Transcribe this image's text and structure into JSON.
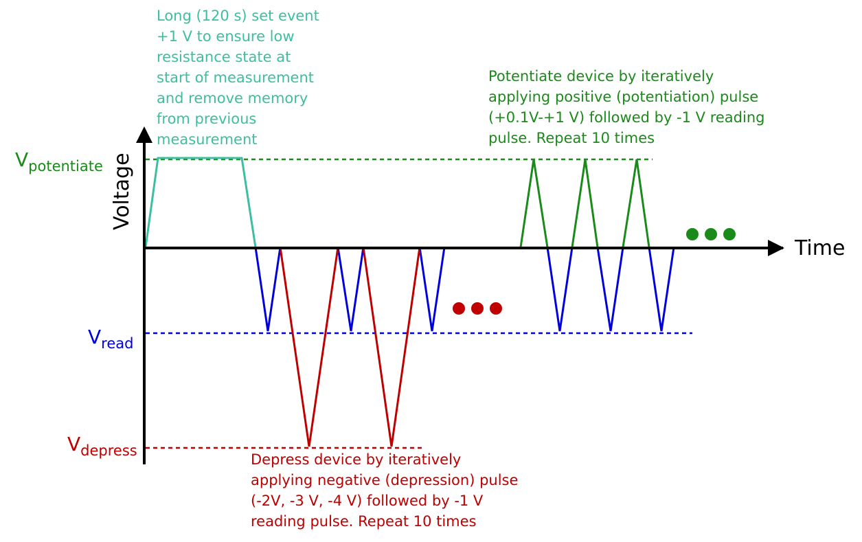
{
  "axes": {
    "x_label": "Time",
    "y_label": "Voltage"
  },
  "levels": {
    "potentiate": {
      "main": "V",
      "sub": "potentiate"
    },
    "read": {
      "main": "V",
      "sub": "read"
    },
    "depress": {
      "main": "V",
      "sub": "depress"
    }
  },
  "annotations": {
    "set_event": [
      "Long (120 s) set event",
      "+1 V to ensure low",
      "resistance state at",
      "start of measurement",
      "and remove memory",
      "from previous",
      "measurement"
    ],
    "potentiate": [
      "Potentiate device by iteratively",
      "applying positive (potentiation) pulse",
      "(+0.1V-+1 V) followed by -1 V reading",
      "pulse. Repeat 10 times"
    ],
    "depress": [
      "Depress device by iteratively",
      "applying negative (depression) pulse",
      "(-2V, -3 V, -4 V) followed by -1 V",
      "reading pulse. Repeat 10 times"
    ]
  },
  "colors": {
    "axis": "#000000",
    "set_event": "#3cbfa0",
    "potentiate": "#1a8a1a",
    "read": "#0000dd",
    "depress": "#c00000"
  }
}
